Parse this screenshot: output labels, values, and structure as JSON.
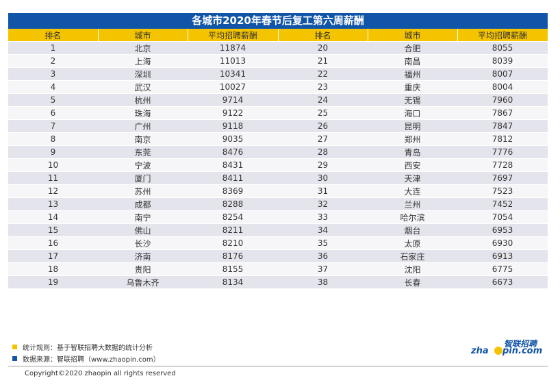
{
  "chart_data": {
    "type": "table",
    "title": "各城市2020年春节后复工第六周薪酬",
    "headers": [
      "排名",
      "城市",
      "平均招聘薪酬",
      "排名",
      "城市",
      "平均招聘薪酬"
    ],
    "rows": [
      [
        "1",
        "北京",
        "11874",
        "20",
        "合肥",
        "8055"
      ],
      [
        "2",
        "上海",
        "11013",
        "21",
        "南昌",
        "8039"
      ],
      [
        "3",
        "深圳",
        "10341",
        "22",
        "福州",
        "8007"
      ],
      [
        "4",
        "武汉",
        "10027",
        "23",
        "重庆",
        "8004"
      ],
      [
        "5",
        "杭州",
        "9714",
        "24",
        "无锡",
        "7960"
      ],
      [
        "6",
        "珠海",
        "9122",
        "25",
        "海口",
        "7867"
      ],
      [
        "7",
        "广州",
        "9118",
        "26",
        "昆明",
        "7847"
      ],
      [
        "8",
        "南京",
        "9035",
        "27",
        "郑州",
        "7812"
      ],
      [
        "9",
        "东莞",
        "8476",
        "28",
        "青岛",
        "7776"
      ],
      [
        "10",
        "宁波",
        "8431",
        "29",
        "西安",
        "7728"
      ],
      [
        "11",
        "厦门",
        "8411",
        "30",
        "天津",
        "7697"
      ],
      [
        "12",
        "苏州",
        "8369",
        "31",
        "大连",
        "7523"
      ],
      [
        "13",
        "成都",
        "8288",
        "32",
        "兰州",
        "7452"
      ],
      [
        "14",
        "南宁",
        "8254",
        "33",
        "哈尔滨",
        "7054"
      ],
      [
        "15",
        "佛山",
        "8211",
        "34",
        "烟台",
        "6953"
      ],
      [
        "16",
        "长沙",
        "8210",
        "35",
        "太原",
        "6930"
      ],
      [
        "17",
        "济南",
        "8176",
        "36",
        "石家庄",
        "6913"
      ],
      [
        "18",
        "贵阳",
        "8155",
        "37",
        "沈阳",
        "6775"
      ],
      [
        "19",
        "乌鲁木齐",
        "8134",
        "38",
        "长春",
        "6673"
      ]
    ]
  },
  "footer": {
    "note1": "统计规则：基于智联招聘大数据的统计分析",
    "note2": "数据来源：智联招聘（www.zhaopin.com）",
    "copyright": "Copyright©2020 zhaopin all rights reserved",
    "logo_text_a": "zha",
    "logo_text_b": "pin.com",
    "logo_cn": "智联招聘"
  },
  "colors": {
    "header_blue": "#1155a8",
    "header_yellow": "#f5c400",
    "row_odd": "#e4e4ec",
    "row_even": "#f6f6f9"
  }
}
